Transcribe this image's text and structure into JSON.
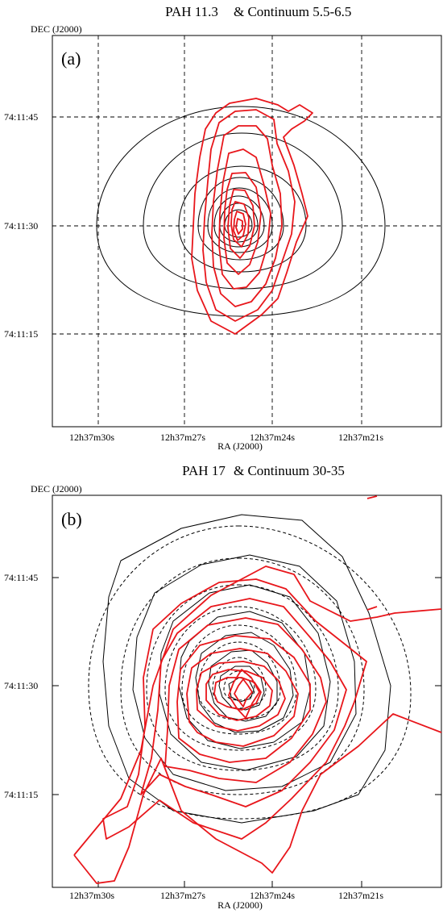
{
  "colors": {
    "red": "#e8161b",
    "black": "#000000"
  },
  "panels": [
    {
      "panel_label": "(a)",
      "title_red": "PAH 11.3",
      "title_black": "& Continuum 5.5-6.5",
      "ylabel": "DEC (J2000)",
      "xlabel": "RA (J2000)",
      "x_ticks": [
        "12h37m30s",
        "12h37m27s",
        "12h37m24s",
        "12h37m21s"
      ],
      "y_ticks": [
        "74:11:45",
        "74:11:30",
        "74:11:15"
      ],
      "grid": "dashed"
    },
    {
      "panel_label": "(b)",
      "title_red": "PAH 17",
      "title_black": "& Continuum 30-35",
      "ylabel": "DEC (J2000)",
      "xlabel": "RA (J2000)",
      "x_ticks": [
        "12h37m30s",
        "12h37m27s",
        "12h37m24s",
        "12h37m21s"
      ],
      "y_ticks": [
        "74:11:45",
        "74:11:30",
        "74:11:15"
      ],
      "grid": "none"
    }
  ],
  "chart_data": [
    {
      "type": "contour",
      "title": "PAH 11.3 & Continuum 5.5-6.5",
      "xlabel": "RA (J2000)",
      "ylabel": "DEC (J2000)",
      "x_ticks": [
        "12h37m30s",
        "12h37m27s",
        "12h37m24s",
        "12h37m21s"
      ],
      "y_ticks": [
        "74:11:45",
        "74:11:30",
        "74:11:15"
      ],
      "grid": true,
      "series": [
        {
          "name": "PAH 11.3",
          "color": "#e8161b"
        },
        {
          "name": "Continuum 5.5-6.5",
          "color": "#000000"
        }
      ]
    },
    {
      "type": "contour",
      "title": "PAH 17 & Continuum 30-35",
      "xlabel": "RA (J2000)",
      "ylabel": "DEC (J2000)",
      "x_ticks": [
        "12h37m30s",
        "12h37m27s",
        "12h37m24s",
        "12h37m21s"
      ],
      "y_ticks": [
        "74:11:45",
        "74:11:30",
        "74:11:15"
      ],
      "grid": false,
      "series": [
        {
          "name": "PAH 17",
          "color": "#e8161b"
        },
        {
          "name": "Continuum 30-35",
          "color": "#000000"
        }
      ]
    }
  ]
}
